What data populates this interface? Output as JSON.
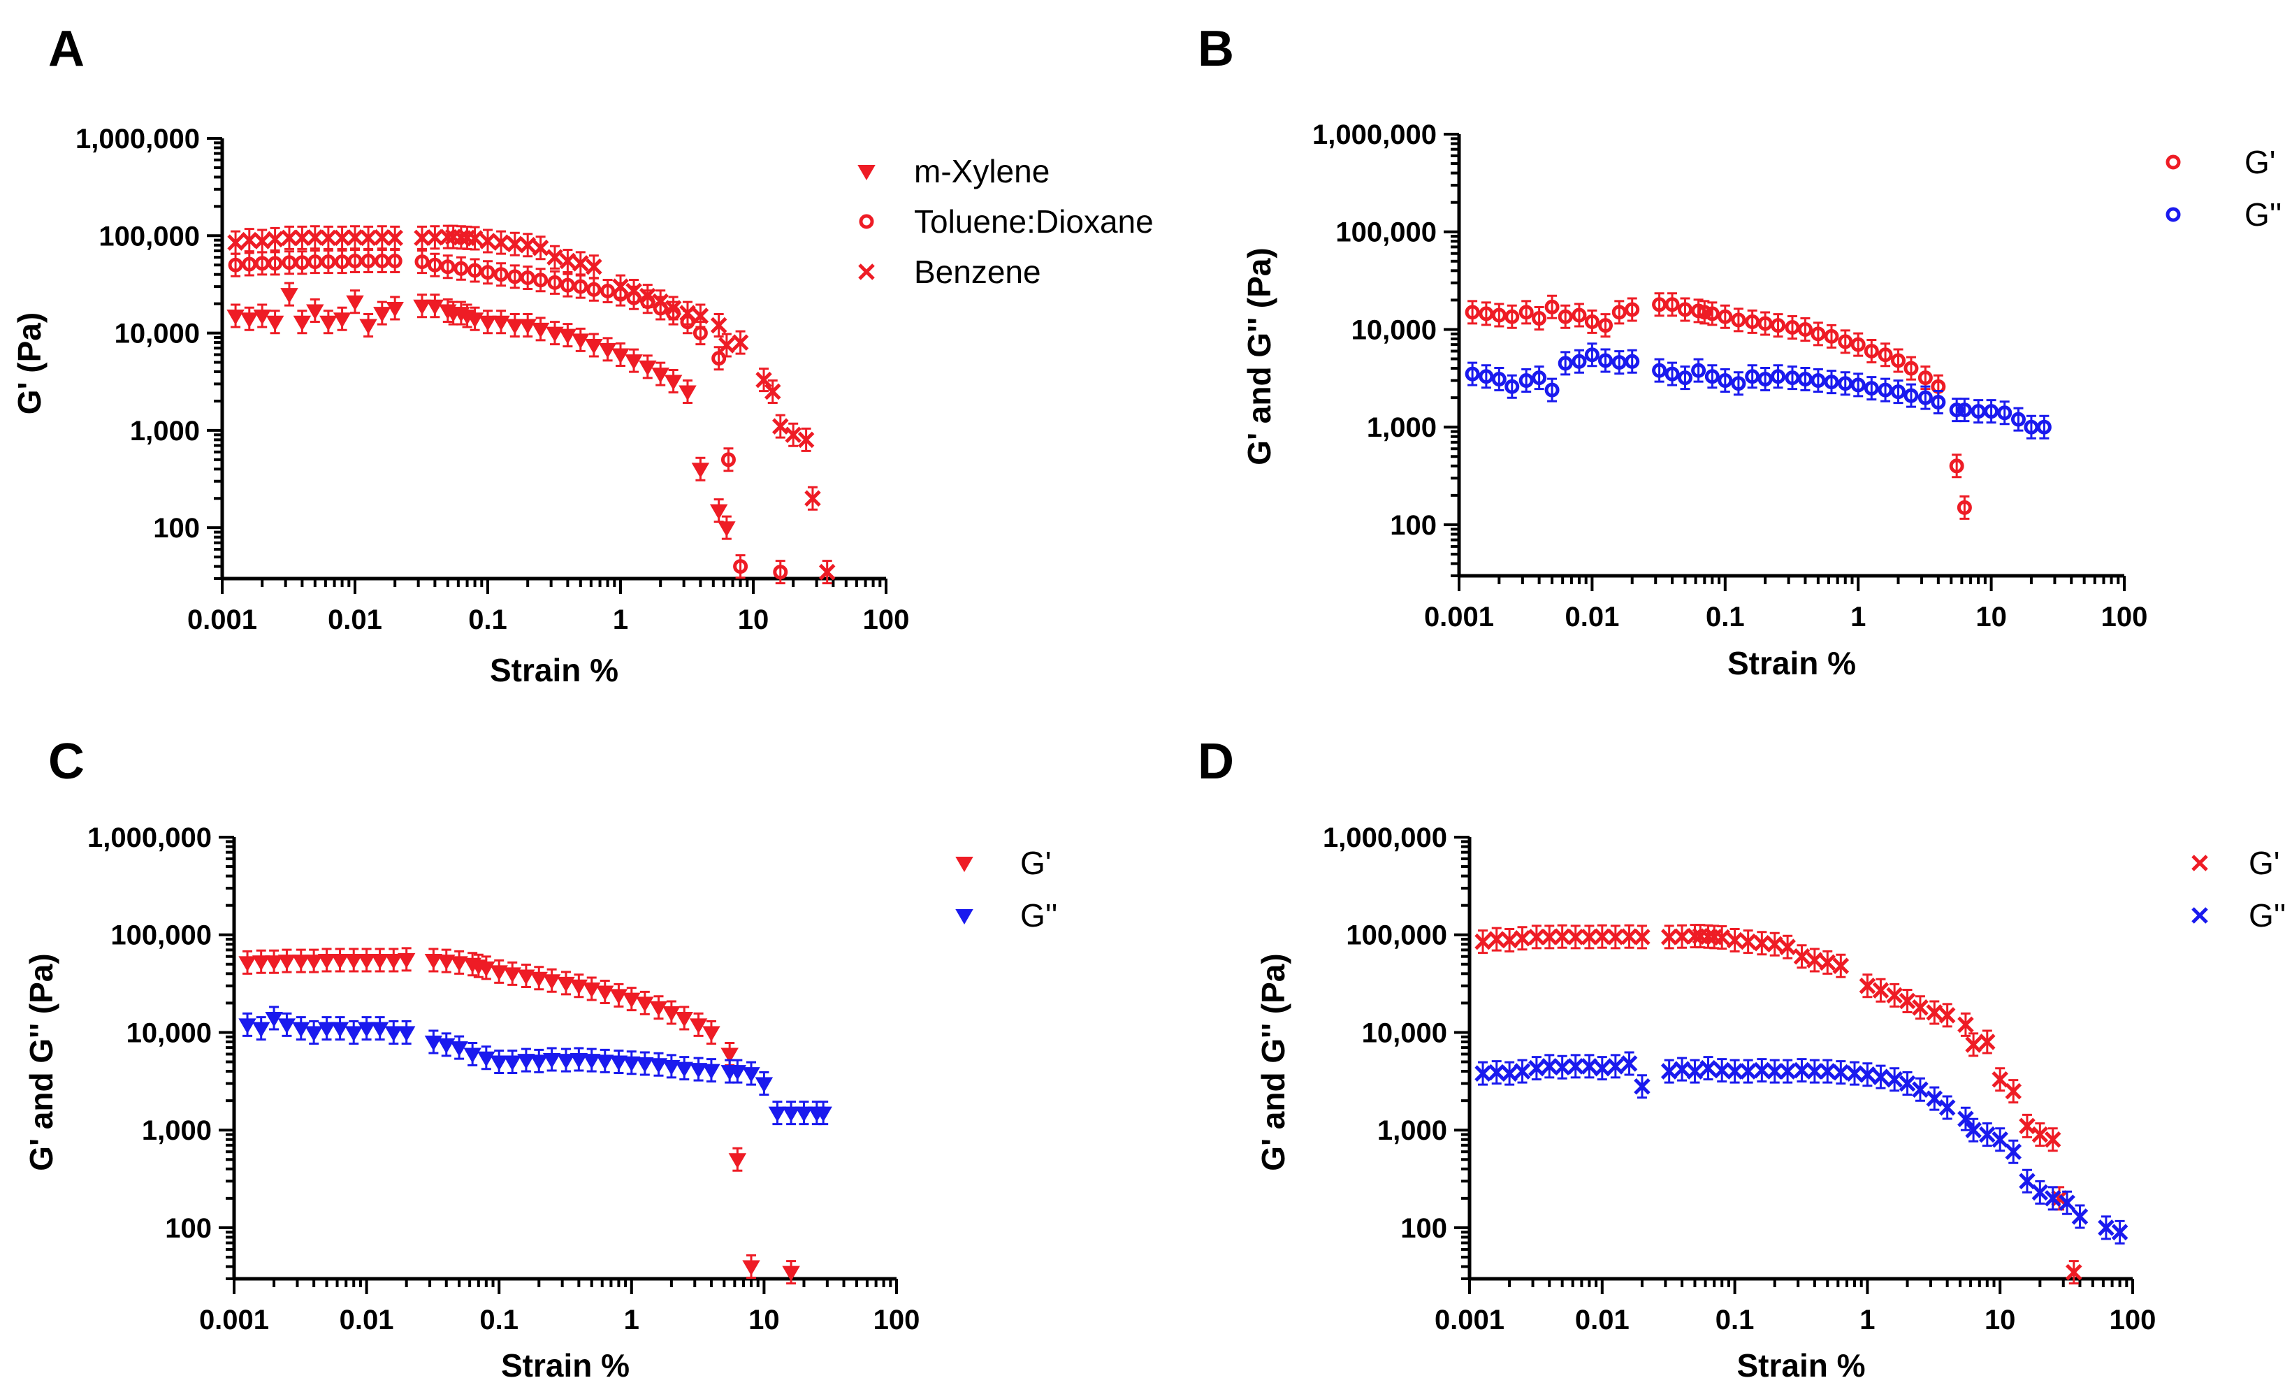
{
  "colors": {
    "red": "#ee1c25",
    "blue": "#1a1aee",
    "axis": "#000000"
  },
  "chart_data": [
    {
      "panel": "A",
      "type": "scatter",
      "xlabel": "Strain %",
      "ylabel": "G' (Pa)",
      "xscale": "log",
      "yscale": "log",
      "xlim": [
        0.001,
        100
      ],
      "ylim": [
        30,
        1000000
      ],
      "xticks": [
        "0.001",
        "0.01",
        "0.1",
        "1",
        "10",
        "100"
      ],
      "yticks": [
        "100",
        "1,000",
        "10,000",
        "100,000",
        "1,000,000"
      ],
      "legend_position": "top-right",
      "series": [
        {
          "name": "m-Xylene",
          "marker": "triangle-down",
          "color": "red",
          "x": [
            0.00126,
            0.0016,
            0.002,
            0.0025,
            0.0032,
            0.004,
            0.005,
            0.0063,
            0.008,
            0.01,
            0.0126,
            0.016,
            0.02,
            0.032,
            0.04,
            0.05,
            0.055,
            0.063,
            0.07,
            0.08,
            0.1,
            0.126,
            0.16,
            0.2,
            0.25,
            0.32,
            0.4,
            0.5,
            0.63,
            0.8,
            1,
            1.26,
            1.6,
            2,
            2.5,
            3.2,
            4,
            5.5,
            6.3
          ],
          "y": [
            15000,
            14000,
            15000,
            13000,
            25000,
            13000,
            17000,
            13000,
            14000,
            21000,
            12000,
            16000,
            18000,
            19000,
            19000,
            17000,
            16000,
            16000,
            15000,
            14000,
            13000,
            13000,
            12000,
            12000,
            11000,
            10000,
            9500,
            8500,
            7500,
            6800,
            6000,
            5200,
            4500,
            3800,
            3200,
            2500,
            400,
            150,
            100
          ]
        },
        {
          "name": "Toluene:Dioxane",
          "marker": "circle-open",
          "color": "red",
          "x": [
            0.00126,
            0.0016,
            0.002,
            0.0025,
            0.0032,
            0.004,
            0.005,
            0.0063,
            0.008,
            0.01,
            0.0126,
            0.016,
            0.02,
            0.032,
            0.04,
            0.05,
            0.063,
            0.08,
            0.1,
            0.126,
            0.16,
            0.2,
            0.25,
            0.32,
            0.4,
            0.5,
            0.63,
            0.8,
            1,
            1.26,
            1.6,
            2,
            2.5,
            3.2,
            4,
            5.5,
            6.5,
            8,
            16
          ],
          "y": [
            50000,
            51000,
            52000,
            52000,
            53000,
            53000,
            54000,
            54000,
            54000,
            55000,
            55000,
            55000,
            55000,
            54000,
            50000,
            48000,
            46000,
            44000,
            42000,
            40000,
            38000,
            37000,
            35000,
            33000,
            31000,
            30000,
            28000,
            27000,
            25000,
            23000,
            21000,
            18000,
            16000,
            13000,
            10000,
            5500,
            500,
            40,
            35
          ]
        },
        {
          "name": "Benzene",
          "marker": "x",
          "color": "red",
          "x": [
            0.00126,
            0.0016,
            0.002,
            0.0025,
            0.0032,
            0.004,
            0.005,
            0.0063,
            0.008,
            0.01,
            0.0126,
            0.016,
            0.02,
            0.032,
            0.04,
            0.05,
            0.055,
            0.063,
            0.07,
            0.08,
            0.1,
            0.126,
            0.16,
            0.2,
            0.25,
            0.32,
            0.4,
            0.5,
            0.63,
            1,
            1.26,
            1.6,
            2,
            2.5,
            3.2,
            4,
            5.5,
            6.3,
            8,
            12,
            14,
            16,
            20,
            25,
            28,
            36
          ],
          "y": [
            85000,
            90000,
            88000,
            92000,
            95000,
            95000,
            96000,
            95000,
            95000,
            96000,
            95000,
            96000,
            95000,
            95000,
            96000,
            97000,
            97000,
            96000,
            95000,
            94000,
            88000,
            85000,
            82000,
            80000,
            75000,
            60000,
            55000,
            52000,
            48000,
            30000,
            27000,
            24000,
            21000,
            18000,
            16000,
            15000,
            12000,
            7500,
            8000,
            3300,
            2500,
            1100,
            900,
            800,
            200,
            35
          ]
        }
      ]
    },
    {
      "panel": "B",
      "type": "scatter",
      "xlabel": "Strain %",
      "ylabel": "G' and G'' (Pa)",
      "xscale": "log",
      "yscale": "log",
      "xlim": [
        0.001,
        100
      ],
      "ylim": [
        30,
        1000000
      ],
      "xticks": [
        "0.001",
        "0.01",
        "0.1",
        "1",
        "10",
        "100"
      ],
      "yticks": [
        "100",
        "1,000",
        "10,000",
        "100,000",
        "1,000,000"
      ],
      "legend_position": "top-right",
      "series": [
        {
          "name": "G'",
          "marker": "circle-open",
          "color": "red",
          "x": [
            0.00126,
            0.0016,
            0.002,
            0.0025,
            0.0032,
            0.004,
            0.005,
            0.0063,
            0.008,
            0.01,
            0.0126,
            0.016,
            0.02,
            0.032,
            0.04,
            0.05,
            0.063,
            0.07,
            0.08,
            0.1,
            0.126,
            0.16,
            0.2,
            0.25,
            0.32,
            0.4,
            0.5,
            0.63,
            0.8,
            1,
            1.26,
            1.6,
            2,
            2.5,
            3.2,
            4,
            5.5,
            6.3
          ],
          "y": [
            15000,
            14500,
            14000,
            13500,
            15000,
            13000,
            17000,
            13500,
            14000,
            12000,
            11000,
            15000,
            16000,
            18000,
            18000,
            16000,
            15500,
            15000,
            14500,
            13500,
            12500,
            12000,
            11500,
            11000,
            10500,
            10000,
            9000,
            8500,
            7500,
            7000,
            6000,
            5500,
            4800,
            4000,
            3200,
            2600,
            400,
            150
          ]
        },
        {
          "name": "G''",
          "marker": "circle-open",
          "color": "blue",
          "x": [
            0.00126,
            0.0016,
            0.002,
            0.0025,
            0.0032,
            0.004,
            0.005,
            0.0063,
            0.008,
            0.01,
            0.0126,
            0.016,
            0.02,
            0.032,
            0.04,
            0.05,
            0.063,
            0.08,
            0.1,
            0.126,
            0.16,
            0.2,
            0.25,
            0.32,
            0.4,
            0.5,
            0.63,
            0.8,
            1,
            1.26,
            1.6,
            2,
            2.5,
            3.2,
            4,
            5.5,
            6.3,
            8,
            10,
            12.6,
            16,
            20,
            25
          ],
          "y": [
            3500,
            3300,
            3100,
            2600,
            3000,
            3200,
            2400,
            4500,
            4700,
            5500,
            4800,
            4600,
            4700,
            3800,
            3500,
            3200,
            3800,
            3300,
            3000,
            2800,
            3300,
            3100,
            3300,
            3200,
            3100,
            3000,
            2900,
            2800,
            2700,
            2500,
            2400,
            2300,
            2100,
            2000,
            1800,
            1500,
            1500,
            1450,
            1450,
            1400,
            1200,
            1000,
            1000
          ]
        }
      ]
    },
    {
      "panel": "C",
      "type": "scatter",
      "xlabel": "Strain %",
      "ylabel": "G' and G'' (Pa)",
      "xscale": "log",
      "yscale": "log",
      "xlim": [
        0.001,
        100
      ],
      "ylim": [
        30,
        1000000
      ],
      "xticks": [
        "0.001",
        "0.01",
        "0.1",
        "1",
        "10",
        "100"
      ],
      "yticks": [
        "100",
        "1,000",
        "10,000",
        "100,000",
        "1,000,000"
      ],
      "legend_position": "top-right",
      "series": [
        {
          "name": "G'",
          "marker": "triangle-down",
          "color": "red",
          "x": [
            0.00126,
            0.0016,
            0.002,
            0.0025,
            0.0032,
            0.004,
            0.005,
            0.0063,
            0.008,
            0.01,
            0.0126,
            0.016,
            0.02,
            0.032,
            0.04,
            0.05,
            0.063,
            0.07,
            0.08,
            0.1,
            0.126,
            0.16,
            0.2,
            0.25,
            0.32,
            0.4,
            0.5,
            0.63,
            0.8,
            1,
            1.26,
            1.6,
            2,
            2.5,
            3.2,
            4,
            5.5,
            6.3,
            8,
            16
          ],
          "y": [
            52000,
            53000,
            53000,
            54000,
            54000,
            54000,
            55000,
            55000,
            55000,
            55000,
            55000,
            55000,
            56000,
            55000,
            54000,
            52000,
            50000,
            48000,
            46000,
            42000,
            40000,
            38000,
            36000,
            34000,
            32000,
            30000,
            28000,
            26000,
            24000,
            22000,
            20000,
            18000,
            16000,
            14000,
            12000,
            10000,
            6000,
            500,
            40,
            35
          ]
        },
        {
          "name": "G''",
          "marker": "triangle-down",
          "color": "blue",
          "x": [
            0.00126,
            0.0016,
            0.002,
            0.0025,
            0.0032,
            0.004,
            0.005,
            0.0063,
            0.008,
            0.01,
            0.0126,
            0.016,
            0.02,
            0.032,
            0.04,
            0.05,
            0.063,
            0.08,
            0.1,
            0.126,
            0.16,
            0.2,
            0.25,
            0.32,
            0.4,
            0.5,
            0.63,
            0.8,
            1,
            1.26,
            1.6,
            2,
            2.5,
            3.2,
            4,
            5.5,
            6.3,
            8,
            10,
            12.6,
            16,
            20,
            25,
            28
          ],
          "y": [
            12000,
            11000,
            14000,
            12000,
            11000,
            10000,
            11000,
            11000,
            10000,
            11000,
            11000,
            10000,
            10000,
            8000,
            7500,
            7000,
            6000,
            5500,
            5000,
            5000,
            5200,
            5100,
            5300,
            5200,
            5300,
            5200,
            5100,
            5000,
            4900,
            4800,
            4700,
            4500,
            4300,
            4200,
            4100,
            4000,
            4000,
            3800,
            3000,
            1500,
            1500,
            1500,
            1500,
            1500
          ]
        }
      ]
    },
    {
      "panel": "D",
      "type": "scatter",
      "xlabel": "Strain %",
      "ylabel": "G' and G'' (Pa)",
      "xscale": "log",
      "yscale": "log",
      "xlim": [
        0.001,
        100
      ],
      "ylim": [
        30,
        1000000
      ],
      "xticks": [
        "0.001",
        "0.01",
        "0.1",
        "1",
        "10",
        "100"
      ],
      "yticks": [
        "100",
        "1,000",
        "10,000",
        "100,000",
        "1,000,000"
      ],
      "legend_position": "top-right",
      "series": [
        {
          "name": "G'",
          "marker": "x",
          "color": "red",
          "x": [
            0.00126,
            0.0016,
            0.002,
            0.0025,
            0.0032,
            0.004,
            0.005,
            0.0063,
            0.008,
            0.01,
            0.0126,
            0.016,
            0.02,
            0.032,
            0.04,
            0.05,
            0.055,
            0.063,
            0.07,
            0.08,
            0.1,
            0.126,
            0.16,
            0.2,
            0.25,
            0.32,
            0.4,
            0.5,
            0.63,
            1,
            1.26,
            1.6,
            2,
            2.5,
            3.2,
            4,
            5.5,
            6.3,
            8,
            10,
            12.6,
            16,
            20,
            25,
            28,
            36
          ],
          "y": [
            85000,
            90000,
            88000,
            92000,
            95000,
            95000,
            96000,
            95000,
            95000,
            96000,
            95000,
            96000,
            95000,
            95000,
            96000,
            97000,
            97000,
            96000,
            95000,
            94000,
            88000,
            85000,
            82000,
            80000,
            75000,
            60000,
            55000,
            52000,
            48000,
            30000,
            27000,
            24000,
            21000,
            18000,
            16000,
            15000,
            12000,
            7500,
            8000,
            3300,
            2500,
            1100,
            900,
            800,
            200,
            35
          ]
        },
        {
          "name": "G''",
          "marker": "x",
          "color": "blue",
          "x": [
            0.00126,
            0.0016,
            0.002,
            0.0025,
            0.0032,
            0.004,
            0.005,
            0.0063,
            0.008,
            0.01,
            0.0126,
            0.016,
            0.02,
            0.032,
            0.04,
            0.05,
            0.063,
            0.08,
            0.1,
            0.126,
            0.16,
            0.2,
            0.25,
            0.32,
            0.4,
            0.5,
            0.63,
            0.8,
            1,
            1.26,
            1.6,
            2,
            2.5,
            3.2,
            4,
            5.5,
            6.3,
            8,
            10,
            12.6,
            16,
            20,
            25,
            32,
            40,
            63,
            80
          ],
          "y": [
            3800,
            3900,
            3800,
            4000,
            4300,
            4500,
            4400,
            4500,
            4500,
            4300,
            4500,
            4800,
            2800,
            4000,
            4200,
            4000,
            4300,
            4100,
            4000,
            4000,
            4100,
            4000,
            4000,
            4100,
            4000,
            4000,
            3900,
            3800,
            3700,
            3500,
            3300,
            3000,
            2600,
            2100,
            1700,
            1300,
            1000,
            900,
            800,
            600,
            300,
            230,
            200,
            180,
            130,
            100,
            90
          ]
        }
      ]
    }
  ]
}
